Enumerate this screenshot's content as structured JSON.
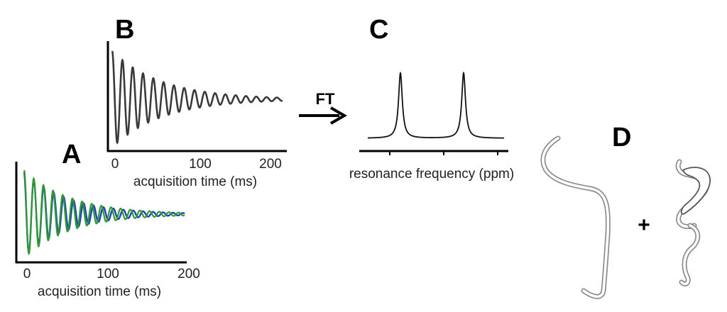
{
  "panels": {
    "a": {
      "letter": "A",
      "ticks": [
        "0",
        "100",
        "200"
      ],
      "xlabel": "acquisition time (ms)",
      "series_colors": [
        "#1f3fbf",
        "#2f9a2f"
      ]
    },
    "b": {
      "letter": "B",
      "ticks": [
        "0",
        "100",
        "200"
      ],
      "xlabel": "acquisition time (ms)",
      "series_colors": [
        "#3a3a3a"
      ]
    },
    "c": {
      "letter": "C",
      "xlabel": "resonance frequency (ppm)"
    },
    "d": {
      "letter": "D",
      "plus": "+"
    }
  },
  "arrow": {
    "label": "FT"
  }
}
